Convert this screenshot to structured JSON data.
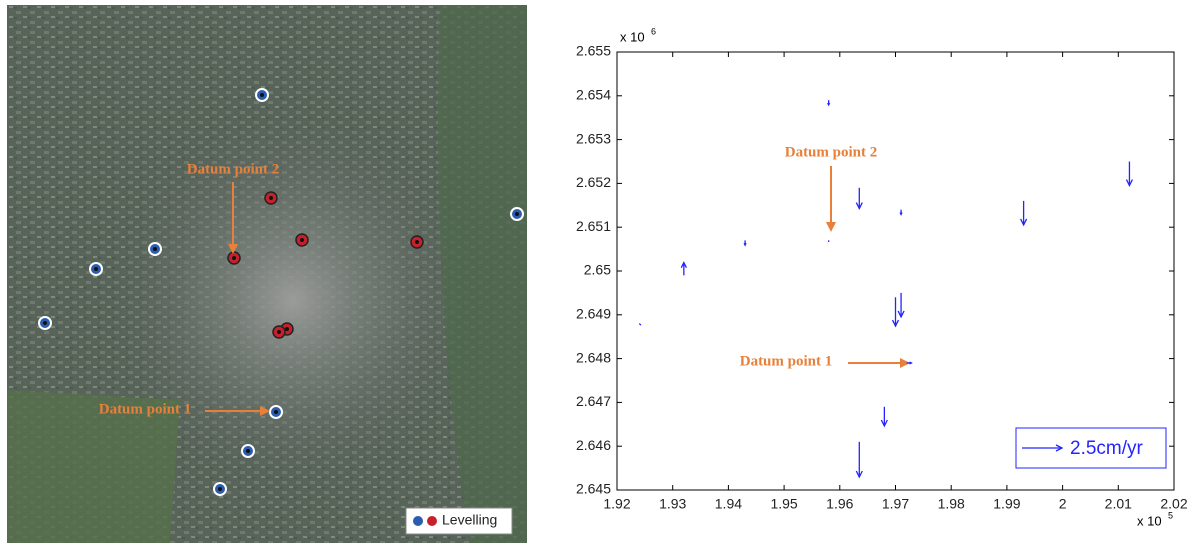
{
  "map": {
    "annotations": [
      "Datum point 2",
      "Datum point 1"
    ],
    "legend": "Levelling"
  },
  "chart_data": {
    "type": "quiver",
    "x": [
      1.924,
      1.932,
      1.943,
      1.958,
      1.958,
      1.9635,
      1.971,
      1.97,
      1.971,
      1.972,
      1.968,
      1.9635,
      1.993,
      2.012
    ],
    "y": [
      2.6488,
      2.6499,
      2.6507,
      2.6539,
      2.6507,
      2.6519,
      2.6514,
      2.6494,
      2.6495,
      2.6479,
      2.6469,
      2.6461,
      2.6516,
      2.6525
    ],
    "u": [
      0.1,
      0,
      0,
      0,
      0,
      0,
      0,
      0,
      0,
      0.3,
      0,
      0,
      0,
      0
    ],
    "v": [
      -0.1,
      0.8,
      -0.3,
      -0.3,
      -0.1,
      -1.3,
      -0.3,
      -1.8,
      -1.5,
      0,
      -1.2,
      -2.2,
      -1.5,
      -1.5
    ],
    "color": "#2424ff",
    "xlim": [
      1.92,
      2.02
    ],
    "xticks": [
      1.92,
      1.93,
      1.94,
      1.95,
      1.96,
      1.97,
      1.98,
      1.99,
      2,
      2.01,
      2.02
    ],
    "ylim": [
      2.645,
      2.655
    ],
    "yticks": [
      2.645,
      2.646,
      2.647,
      2.648,
      2.649,
      2.65,
      2.651,
      2.652,
      2.653,
      2.654,
      2.655
    ],
    "x_multiplier": {
      "base": "x 10",
      "exponent": "5"
    },
    "y_multiplier": {
      "base": "x 10",
      "exponent": "6"
    },
    "key": {
      "value": 2.5,
      "label": "2.5cm/yr"
    },
    "annotations": [
      "Datum point 2",
      "Datum point 1"
    ]
  }
}
